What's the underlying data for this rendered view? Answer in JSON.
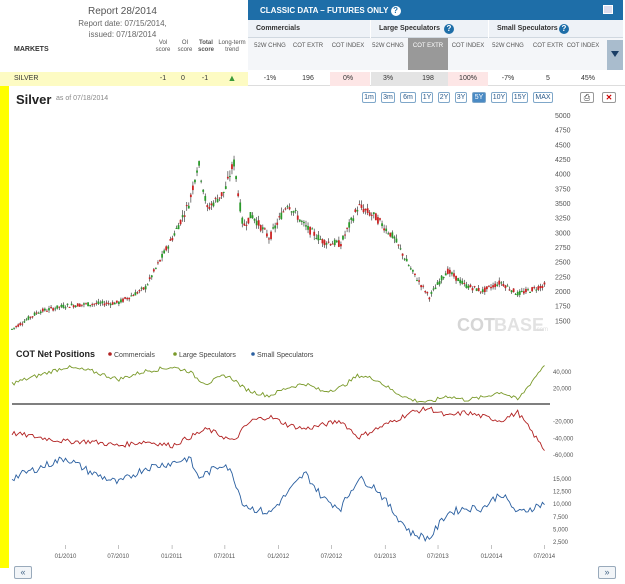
{
  "report": {
    "title": "Report 28/2014",
    "date": "Report date: 07/15/2014,",
    "issued": "issued: 07/18/2014"
  },
  "table_headers": {
    "markets": "MARKETS",
    "vol": "Vol score",
    "oi": "OI score",
    "total": "Total score",
    "trend": "Long-term trend"
  },
  "classic": {
    "label": "CLASSIC DATA – FUTURES ONLY",
    "help": "?"
  },
  "groups": [
    "Commercials",
    "Large Speculators",
    "Small Speculators"
  ],
  "sub_headers": [
    "52W CHNG",
    "COT EXTR",
    "COT INDEX"
  ],
  "row": {
    "name": "SILVER",
    "vol": "-1",
    "oi": "0",
    "total": "-1",
    "com_chng": "-1%",
    "com_extr": "196",
    "com_index": "0%",
    "ls_chng": "3%",
    "ls_extr": "198",
    "ls_index": "100%",
    "ss_chng": "-7%",
    "ss_extr": "5",
    "ss_index": "45%"
  },
  "chart_header": {
    "title": "Silver",
    "asof": "as of 07/18/2014"
  },
  "ranges": [
    "1m",
    "3m",
    "6m",
    "1Y",
    "2Y",
    "3Y",
    "5Y",
    "10Y",
    "15Y",
    "MAX"
  ],
  "active_range": "5Y",
  "watermark": {
    "a": "COT",
    "b": "BASE",
    "c": ".com"
  },
  "nav": {
    "prev": "«",
    "next": "»"
  },
  "colors": {
    "commercials": "#b22222",
    "large": "#7a9a2a",
    "small": "#2a5fa0",
    "up": "#2a9a2a",
    "down": "#cc2222"
  },
  "chart_data": [
    {
      "type": "line",
      "title": "Silver",
      "x_ticks": [
        "01/2010",
        "07/2010",
        "01/2011",
        "07/2011",
        "01/2012",
        "07/2012",
        "01/2013",
        "07/2013",
        "01/2014",
        "07/2014"
      ],
      "ylim": [
        1250,
        5000
      ],
      "y_ticks": [
        1500,
        1750,
        2000,
        2250,
        2500,
        2750,
        3000,
        3250,
        3500,
        3750,
        4000,
        4250,
        4500,
        4750,
        5000
      ],
      "x": [
        "2009-07",
        "2009-10",
        "2010-01",
        "2010-04",
        "2010-07",
        "2010-10",
        "2011-01",
        "2011-03",
        "2011-04",
        "2011-05",
        "2011-07",
        "2011-08",
        "2011-09",
        "2011-10",
        "2011-12",
        "2012-02",
        "2012-04",
        "2012-06",
        "2012-08",
        "2012-10",
        "2012-12",
        "2013-02",
        "2013-04",
        "2013-06",
        "2013-08",
        "2013-10",
        "2013-12",
        "2014-02",
        "2014-04",
        "2014-07"
      ],
      "values": [
        1350,
        1650,
        1750,
        1780,
        1800,
        2050,
        2900,
        3500,
        4200,
        3400,
        3700,
        4200,
        3100,
        3300,
        2900,
        3500,
        3100,
        2850,
        2800,
        3450,
        3250,
        2900,
        2350,
        1900,
        2350,
        2100,
        2000,
        2150,
        1950,
        2100
      ]
    },
    {
      "type": "line",
      "title": "COT Net Positions",
      "series": [
        {
          "name": "Commercials",
          "values": [
            -35000,
            -40000,
            -45000,
            -45000,
            -50000,
            -45000,
            -50000,
            -40000,
            -35000,
            -30000,
            -40000,
            -45000,
            -30000,
            -20000,
            -15000,
            -25000,
            -30000,
            -25000,
            -20000,
            -40000,
            -30000,
            -20000,
            -10000,
            -5000,
            -15000,
            -10000,
            -15000,
            -20000,
            -10000,
            -55000
          ]
        },
        {
          "name": "Large Speculators",
          "values": [
            25000,
            35000,
            45000,
            40000,
            30000,
            40000,
            45000,
            40000,
            30000,
            25000,
            35000,
            30000,
            20000,
            15000,
            10000,
            20000,
            25000,
            15000,
            20000,
            35000,
            30000,
            15000,
            5000,
            2000,
            10000,
            5000,
            8000,
            15000,
            5000,
            48000
          ]
        },
        {
          "name": "Small Speculators",
          "values": [
            15000,
            17000,
            19000,
            16000,
            14000,
            17000,
            18000,
            19000,
            15000,
            16000,
            18000,
            15000,
            10000,
            9000,
            8000,
            12000,
            16000,
            11000,
            9000,
            15000,
            13000,
            8000,
            4000,
            3000,
            8000,
            9000,
            9000,
            12000,
            8000,
            10000
          ]
        }
      ],
      "y_ticks_large": [
        40000,
        20000
      ],
      "y_ticks_comm": [
        -20000,
        -40000,
        -60000
      ],
      "y_ticks_small": [
        15000,
        12500,
        10000,
        7500,
        5000,
        2500
      ]
    }
  ]
}
